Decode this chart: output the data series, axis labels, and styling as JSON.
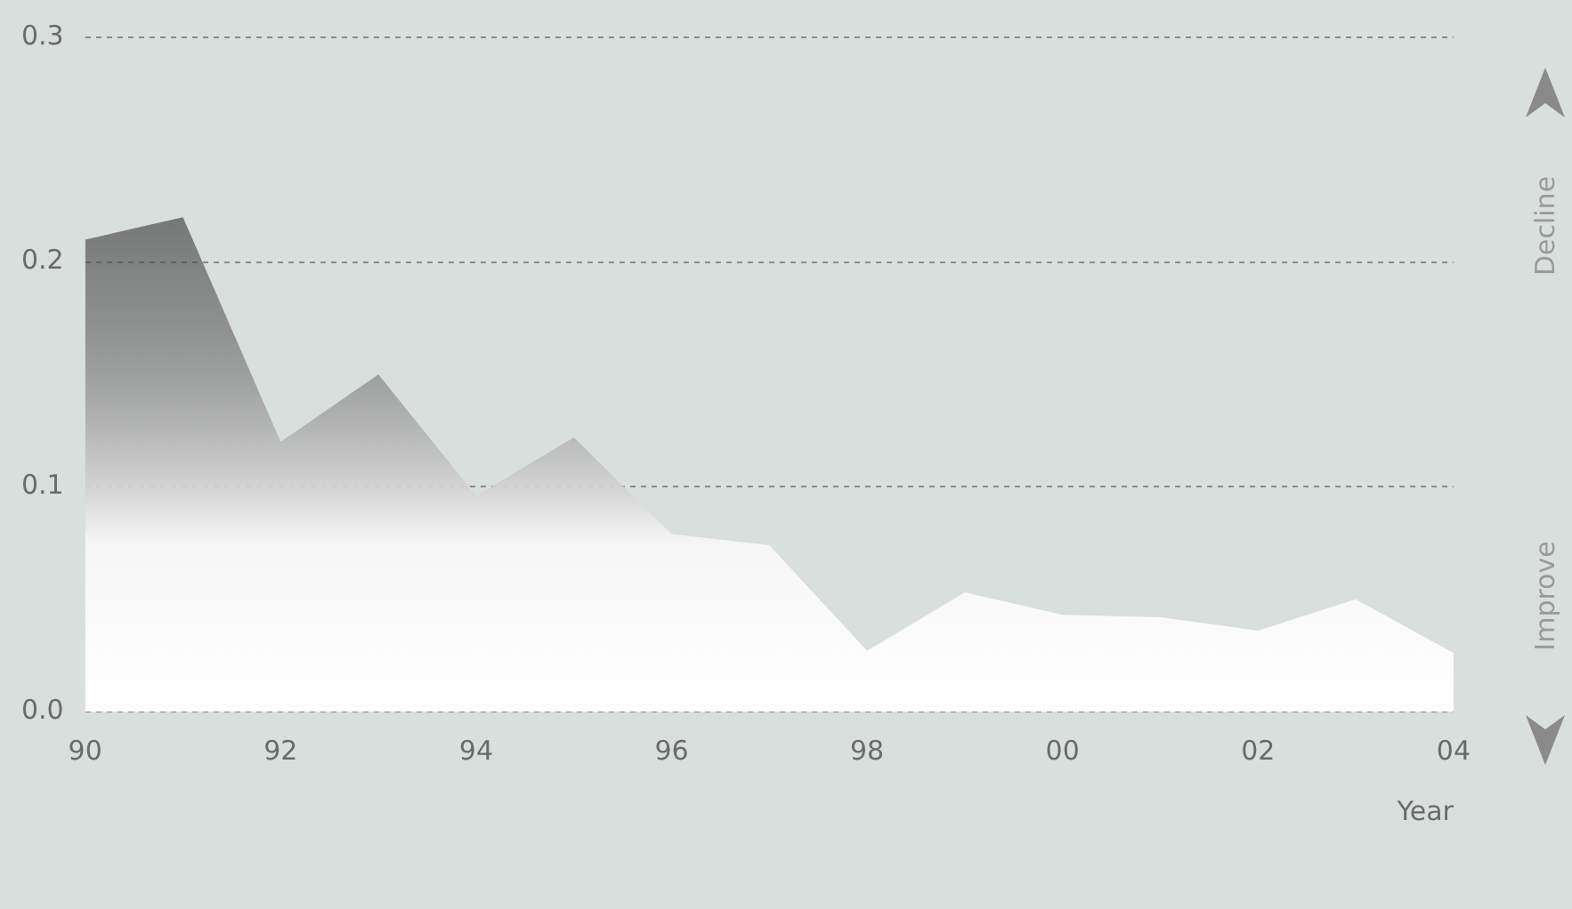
{
  "chart_data": {
    "type": "area",
    "xlabel": "Year",
    "categories": [
      "90",
      null,
      "92",
      null,
      "94",
      null,
      "96",
      null,
      "98",
      null,
      "00",
      null,
      "02",
      null,
      "04"
    ],
    "series": [
      {
        "color": "#4a4a4a",
        "values": [
          0.21,
          0.22,
          0.12,
          0.15,
          0.096,
          0.122,
          0.079,
          0.074,
          0.027,
          0.053,
          0.043,
          0.042,
          0.036,
          0.05,
          0.026
        ]
      }
    ],
    "ylim": [
      0,
      0.3
    ],
    "yticks": [
      {
        "value": 0,
        "label": "0.0"
      },
      {
        "value": 0.1,
        "label": "0.1"
      },
      {
        "value": 0.2,
        "label": "0.2"
      },
      {
        "value": 0.3,
        "label": "0.3"
      }
    ],
    "grid": "y",
    "legend": false,
    "annotations": [
      "Decline",
      "Improve"
    ]
  }
}
